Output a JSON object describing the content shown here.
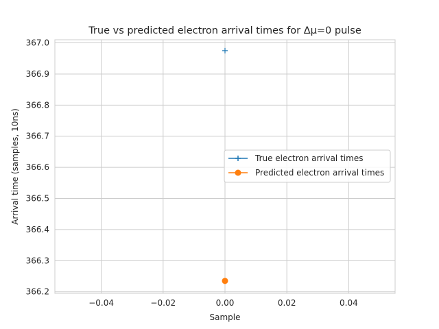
{
  "chart_data": {
    "type": "scatter",
    "title": "True vs predicted electron arrival times for Δμ=0 pulse",
    "xlabel": "Sample",
    "ylabel": "Arrival time (samples, 10ns)",
    "xlim": [
      -0.055,
      0.055
    ],
    "ylim": [
      366.195,
      367.01
    ],
    "x_ticks": [
      -0.04,
      -0.02,
      0.0,
      0.02,
      0.04
    ],
    "x_tick_labels": [
      "−0.04",
      "−0.02",
      "0.00",
      "0.02",
      "0.04"
    ],
    "y_ticks": [
      366.2,
      366.3,
      366.4,
      366.5,
      366.6,
      366.7,
      366.8,
      366.9,
      367.0
    ],
    "y_tick_labels": [
      "366.2",
      "366.3",
      "366.4",
      "366.5",
      "366.6",
      "366.7",
      "366.8",
      "366.9",
      "367.0"
    ],
    "grid": true,
    "legend_position": "center-right",
    "series": [
      {
        "name": "True electron arrival times",
        "marker": "plus",
        "color": "#1f77b4",
        "points": [
          {
            "x": 0.0,
            "y": 366.975
          }
        ]
      },
      {
        "name": "Predicted electron arrival times",
        "marker": "circle",
        "color": "#ff7f0e",
        "points": [
          {
            "x": 0.0,
            "y": 366.235
          }
        ]
      }
    ]
  }
}
